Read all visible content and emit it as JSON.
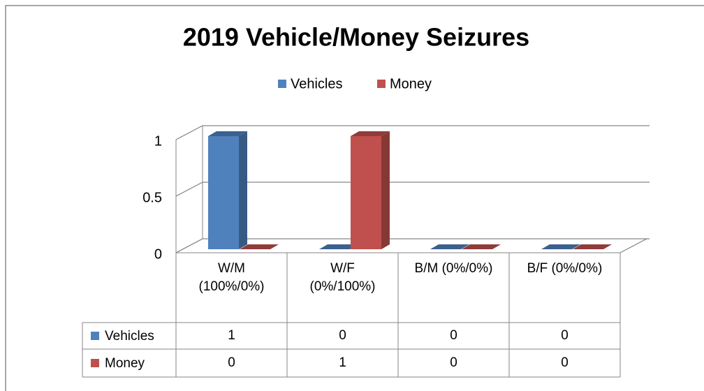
{
  "chart_data": {
    "type": "bar",
    "title": "2019 Vehicle/Money  Seizures",
    "categories": [
      "W/M (100%/0%)",
      "W/F (0%/100%)",
      "B/M (0%/0%)",
      "B/F (0%/0%)"
    ],
    "series": [
      {
        "name": "Vehicles",
        "color": "#4f81bd",
        "values": [
          1,
          0,
          0,
          0
        ]
      },
      {
        "name": "Money",
        "color": "#c0504d",
        "values": [
          0,
          1,
          0,
          0
        ]
      }
    ],
    "ylim": [
      0,
      1
    ],
    "yticks": [
      0,
      0.5,
      1
    ],
    "grid": true,
    "legend": "top",
    "data_table": true
  }
}
